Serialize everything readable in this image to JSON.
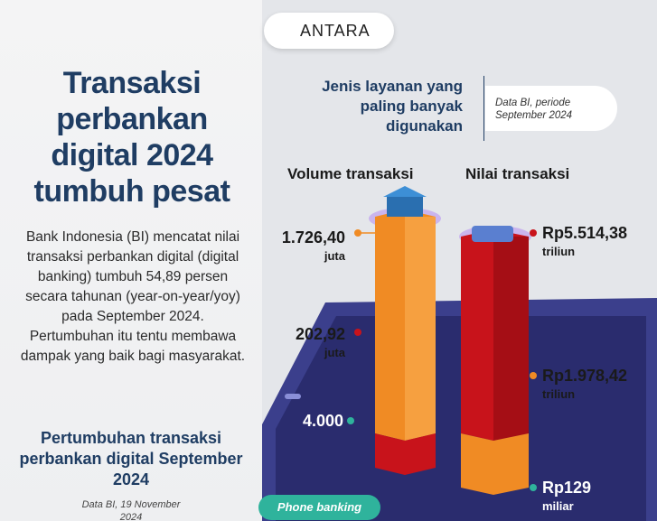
{
  "logo": "ANTARA",
  "title": "Transaksi perbankan digital 2024 tumbuh pesat",
  "body": "Bank Indonesia (BI) mencatat nilai transaksi perbankan digital (digital banking) tumbuh 54,89 persen secara tahunan (year-on-year/yoy) pada September 2024. Pertumbuhan itu tentu membawa dampak yang baik bagi masyarakat.",
  "growth_heading": "Pertumbuhan transaksi perbankan digital September 2024",
  "growth_source": "Data BI, 19 November 2024",
  "subtitle": "Jenis layanan yang paling banyak digunakan",
  "source": "Data BI, periode September 2024",
  "columns": [
    {
      "title": "Volume transaksi",
      "labels": [
        {
          "value": "1.726,40",
          "unit": "juta"
        },
        {
          "value": "202,92",
          "unit": "juta"
        },
        {
          "value": "4.000"
        }
      ]
    },
    {
      "title": "Nilai transaksi",
      "labels": [
        {
          "value": "Rp5.514,38",
          "unit": "triliun"
        },
        {
          "value": "Rp1.978,42",
          "unit": "triliun"
        },
        {
          "value": "Rp129",
          "unit": "miliar"
        }
      ]
    }
  ],
  "footer": "Phone banking"
}
